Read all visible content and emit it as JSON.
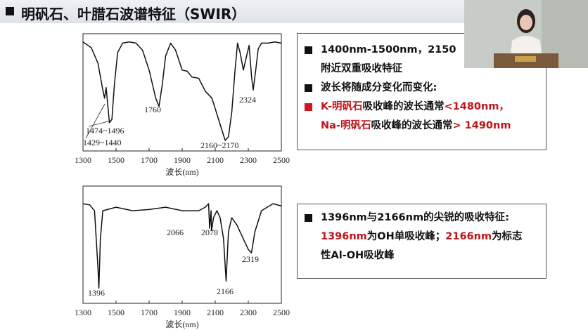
{
  "header": {
    "title": "明矾石、叶腊石波谱特征（SWIR）"
  },
  "chart_data": [
    {
      "type": "line",
      "x_label": "波长(nm)",
      "xlim": [
        1300,
        2500
      ],
      "xticks": [
        1300,
        1500,
        1700,
        1900,
        2100,
        2300,
        2500
      ],
      "ylim": [
        0,
        100
      ],
      "x": [
        1300,
        1350,
        1390,
        1420,
        1430,
        1440,
        1460,
        1475,
        1490,
        1510,
        1540,
        1580,
        1620,
        1660,
        1700,
        1740,
        1760,
        1780,
        1800,
        1830,
        1860,
        1900,
        1930,
        1960,
        2000,
        2040,
        2080,
        2120,
        2160,
        2180,
        2200,
        2220,
        2235,
        2250,
        2270,
        2290,
        2305,
        2320,
        2330,
        2345,
        2360,
        2380,
        2420,
        2460,
        2500
      ],
      "values": [
        93,
        88,
        75,
        52,
        45,
        54,
        24,
        27,
        57,
        84,
        92,
        93,
        92,
        86,
        69,
        45,
        38,
        57,
        81,
        92,
        86,
        69,
        68,
        63,
        62,
        51,
        45,
        27,
        9,
        12,
        33,
        69,
        92,
        84,
        69,
        81,
        90,
        63,
        52,
        69,
        87,
        92,
        92,
        93,
        92
      ],
      "annotations": [
        "1474~1496",
        "1429~1440",
        "1760",
        "2160~2170",
        "2324"
      ]
    },
    {
      "type": "line",
      "x_label": "波长(nm)",
      "xlim": [
        1300,
        2500
      ],
      "xticks": [
        1300,
        1500,
        1700,
        1900,
        2100,
        2300,
        2500
      ],
      "ylim": [
        0,
        100
      ],
      "x": [
        1300,
        1340,
        1370,
        1390,
        1396,
        1405,
        1420,
        1500,
        1600,
        1700,
        1800,
        1900,
        2000,
        2040,
        2060,
        2066,
        2075,
        2078,
        2090,
        2110,
        2130,
        2150,
        2166,
        2180,
        2200,
        2230,
        2260,
        2300,
        2319,
        2340,
        2380,
        2450,
        2500
      ],
      "values": [
        85,
        84,
        79,
        31,
        13,
        55,
        79,
        82,
        79,
        80,
        82,
        79,
        79,
        82,
        85,
        64,
        79,
        62,
        73,
        79,
        73,
        55,
        19,
        61,
        73,
        67,
        58,
        46,
        43,
        61,
        79,
        85,
        83
      ],
      "annotations": [
        "1396",
        "2066",
        "2078",
        "2166",
        "2319"
      ]
    }
  ],
  "notes": [
    {
      "items": [
        {
          "bullet_red": false,
          "lines": [
            [
              {
                "text": "1400nm-1500nm，2150",
                "highlight": false
              }
            ],
            [
              {
                "text": "附近双重吸收特征",
                "highlight": false
              }
            ]
          ]
        },
        {
          "bullet_red": false,
          "lines": [
            [
              {
                "text": "波长将随成分变化而变化:",
                "highlight": false
              }
            ]
          ]
        },
        {
          "bullet_red": true,
          "lines": [
            [
              {
                "text": "K-明矾石",
                "highlight": true
              },
              {
                "text": "吸收峰的波长通常",
                "highlight": false
              },
              {
                "text": "<1480nm，",
                "highlight": true
              }
            ],
            [
              {
                "text": "Na-明矾石",
                "highlight": true
              },
              {
                "text": "吸收峰的波长通常",
                "highlight": false
              },
              {
                "text": "> 1490nm",
                "highlight": true
              }
            ]
          ]
        }
      ]
    },
    {
      "items": [
        {
          "bullet_red": false,
          "lines": [
            [
              {
                "text": "1396nm与2166nm的尖锐的吸收特征:",
                "highlight": false
              }
            ],
            [
              {
                "text": "1396nm",
                "highlight": true
              },
              {
                "text": "为OH单吸收峰；",
                "highlight": false
              },
              {
                "text": "2166nm",
                "highlight": true
              },
              {
                "text": "为标志",
                "highlight": false
              }
            ],
            [
              {
                "text": "性Al-OH吸收峰",
                "highlight": false
              }
            ]
          ]
        }
      ]
    }
  ]
}
